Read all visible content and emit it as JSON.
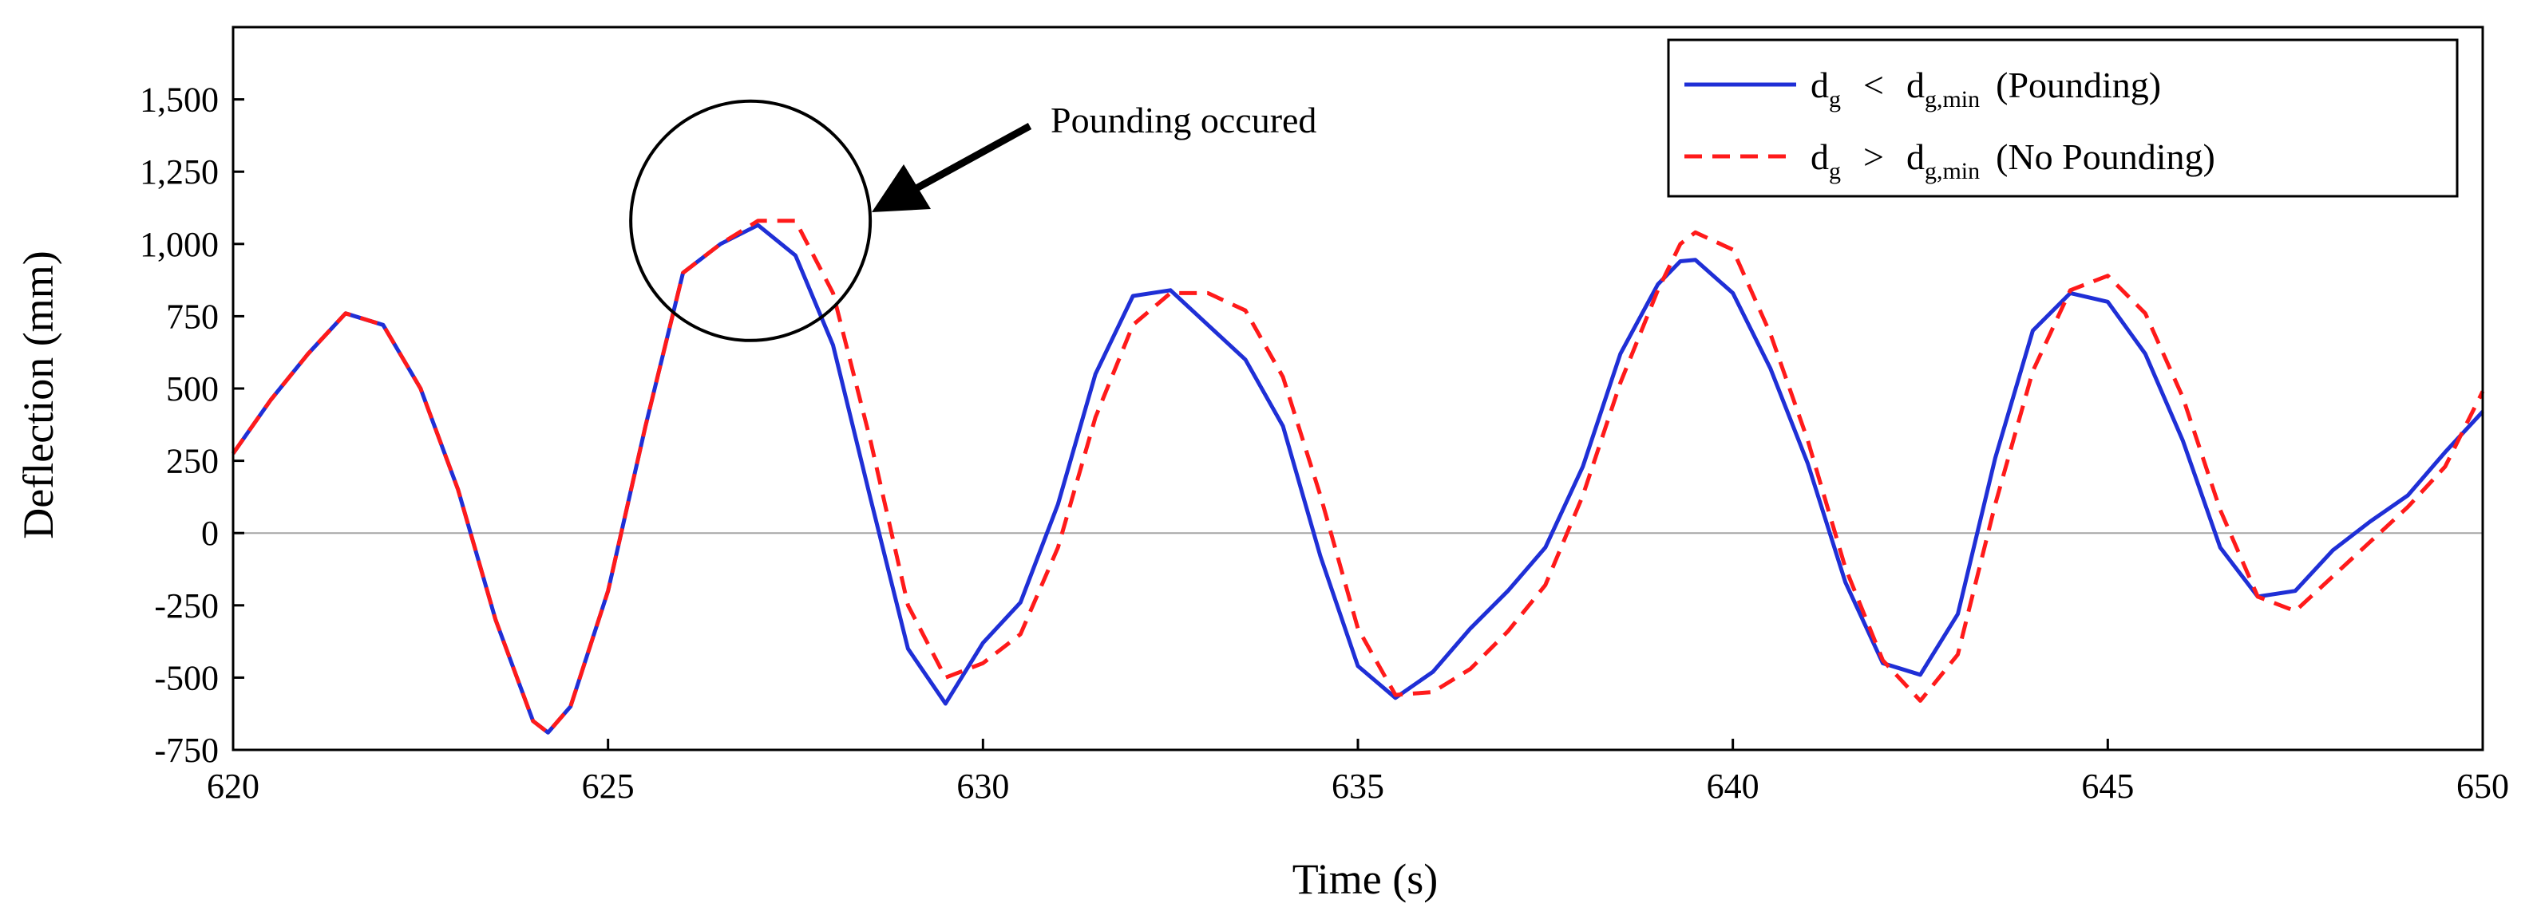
{
  "chart_data": {
    "type": "line",
    "title": "",
    "xlabel": "Time (s)",
    "ylabel": "Deflection (mm)",
    "xlim": [
      620,
      650
    ],
    "ylim": [
      -750,
      1750
    ],
    "xticks": [
      620,
      625,
      630,
      635,
      640,
      645,
      650
    ],
    "xtick_labels": [
      "620",
      "625",
      "630",
      "635",
      "640",
      "645",
      "650"
    ],
    "yticks": [
      -750,
      -500,
      -250,
      0,
      250,
      500,
      750,
      1000,
      1250,
      1500
    ],
    "ytick_labels": [
      "-750",
      "-500",
      "-250",
      "0",
      "250",
      "500",
      "750",
      "1,000",
      "1,250",
      "1,500"
    ],
    "grid": false,
    "zero_line": true,
    "legend_position": "top-right",
    "series": [
      {
        "name": "dg < dg,min (Pounding)",
        "color": "#1f2fd6",
        "style": "solid",
        "x": [
          620,
          620.5,
          621,
          621.5,
          622,
          622.5,
          623,
          623.5,
          624,
          624.2,
          624.5,
          625,
          625.5,
          626,
          626.5,
          627,
          627.5,
          628,
          628.5,
          629,
          629.5,
          630,
          630.5,
          631,
          631.5,
          632,
          632.5,
          633,
          633.5,
          634,
          634.5,
          635,
          635.5,
          636,
          636.5,
          637,
          637.5,
          638,
          638.5,
          639,
          639.3,
          639.5,
          640,
          640.5,
          641,
          641.5,
          642,
          642.5,
          643,
          643.5,
          644,
          644.5,
          645,
          645.5,
          646,
          646.5,
          647,
          647.5,
          648,
          648.5,
          649,
          649.5,
          650
        ],
        "y": [
          275,
          460,
          620,
          760,
          720,
          500,
          150,
          -300,
          -650,
          -690,
          -600,
          -200,
          370,
          900,
          1000,
          1065,
          960,
          650,
          120,
          -400,
          -590,
          -380,
          -240,
          100,
          550,
          820,
          840,
          720,
          600,
          370,
          -80,
          -460,
          -570,
          -480,
          -330,
          -200,
          -50,
          230,
          620,
          860,
          940,
          945,
          830,
          570,
          240,
          -170,
          -450,
          -490,
          -280,
          260,
          700,
          830,
          800,
          620,
          320,
          -50,
          -220,
          -200,
          -60,
          40,
          130,
          280,
          420
        ]
      },
      {
        "name": "dg > dg,min (No Pounding)",
        "color": "#ff1a1a",
        "style": "dashed",
        "x": [
          620,
          620.5,
          621,
          621.5,
          622,
          622.5,
          623,
          623.5,
          624,
          624.2,
          624.5,
          625,
          625.5,
          626,
          626.5,
          627,
          627.5,
          628,
          628.5,
          629,
          629.5,
          630,
          630.5,
          631,
          631.5,
          632,
          632.5,
          633,
          633.5,
          634,
          634.5,
          635,
          635.5,
          636,
          636.5,
          637,
          637.5,
          638,
          638.5,
          639,
          639.3,
          639.5,
          640,
          640.5,
          641,
          641.5,
          642,
          642.5,
          643,
          643.5,
          644,
          644.5,
          645,
          645.5,
          646,
          646.5,
          647,
          647.5,
          648,
          648.5,
          649,
          649.5,
          650
        ],
        "y": [
          275,
          460,
          620,
          760,
          720,
          500,
          150,
          -300,
          -650,
          -690,
          -600,
          -200,
          370,
          900,
          1000,
          1080,
          1080,
          830,
          320,
          -250,
          -500,
          -450,
          -350,
          -50,
          400,
          720,
          830,
          830,
          770,
          540,
          130,
          -330,
          -560,
          -550,
          -470,
          -340,
          -180,
          130,
          520,
          840,
          1000,
          1040,
          980,
          690,
          320,
          -120,
          -440,
          -580,
          -420,
          100,
          560,
          840,
          890,
          760,
          470,
          80,
          -220,
          -270,
          -150,
          -30,
          90,
          230,
          490
        ]
      }
    ],
    "annotations": [
      {
        "text": "Pounding occured",
        "target_x": 626.9,
        "target_y": 1080
      }
    ]
  },
  "legend": {
    "series1": {
      "main": "d",
      "sub": "g",
      "op": "<",
      "main2": "d",
      "sub2": "g,min",
      "note": "(Pounding)"
    },
    "series2": {
      "main": "d",
      "sub": "g",
      "op": ">",
      "main2": "d",
      "sub2": "g,min",
      "note": "(No Pounding)"
    }
  }
}
